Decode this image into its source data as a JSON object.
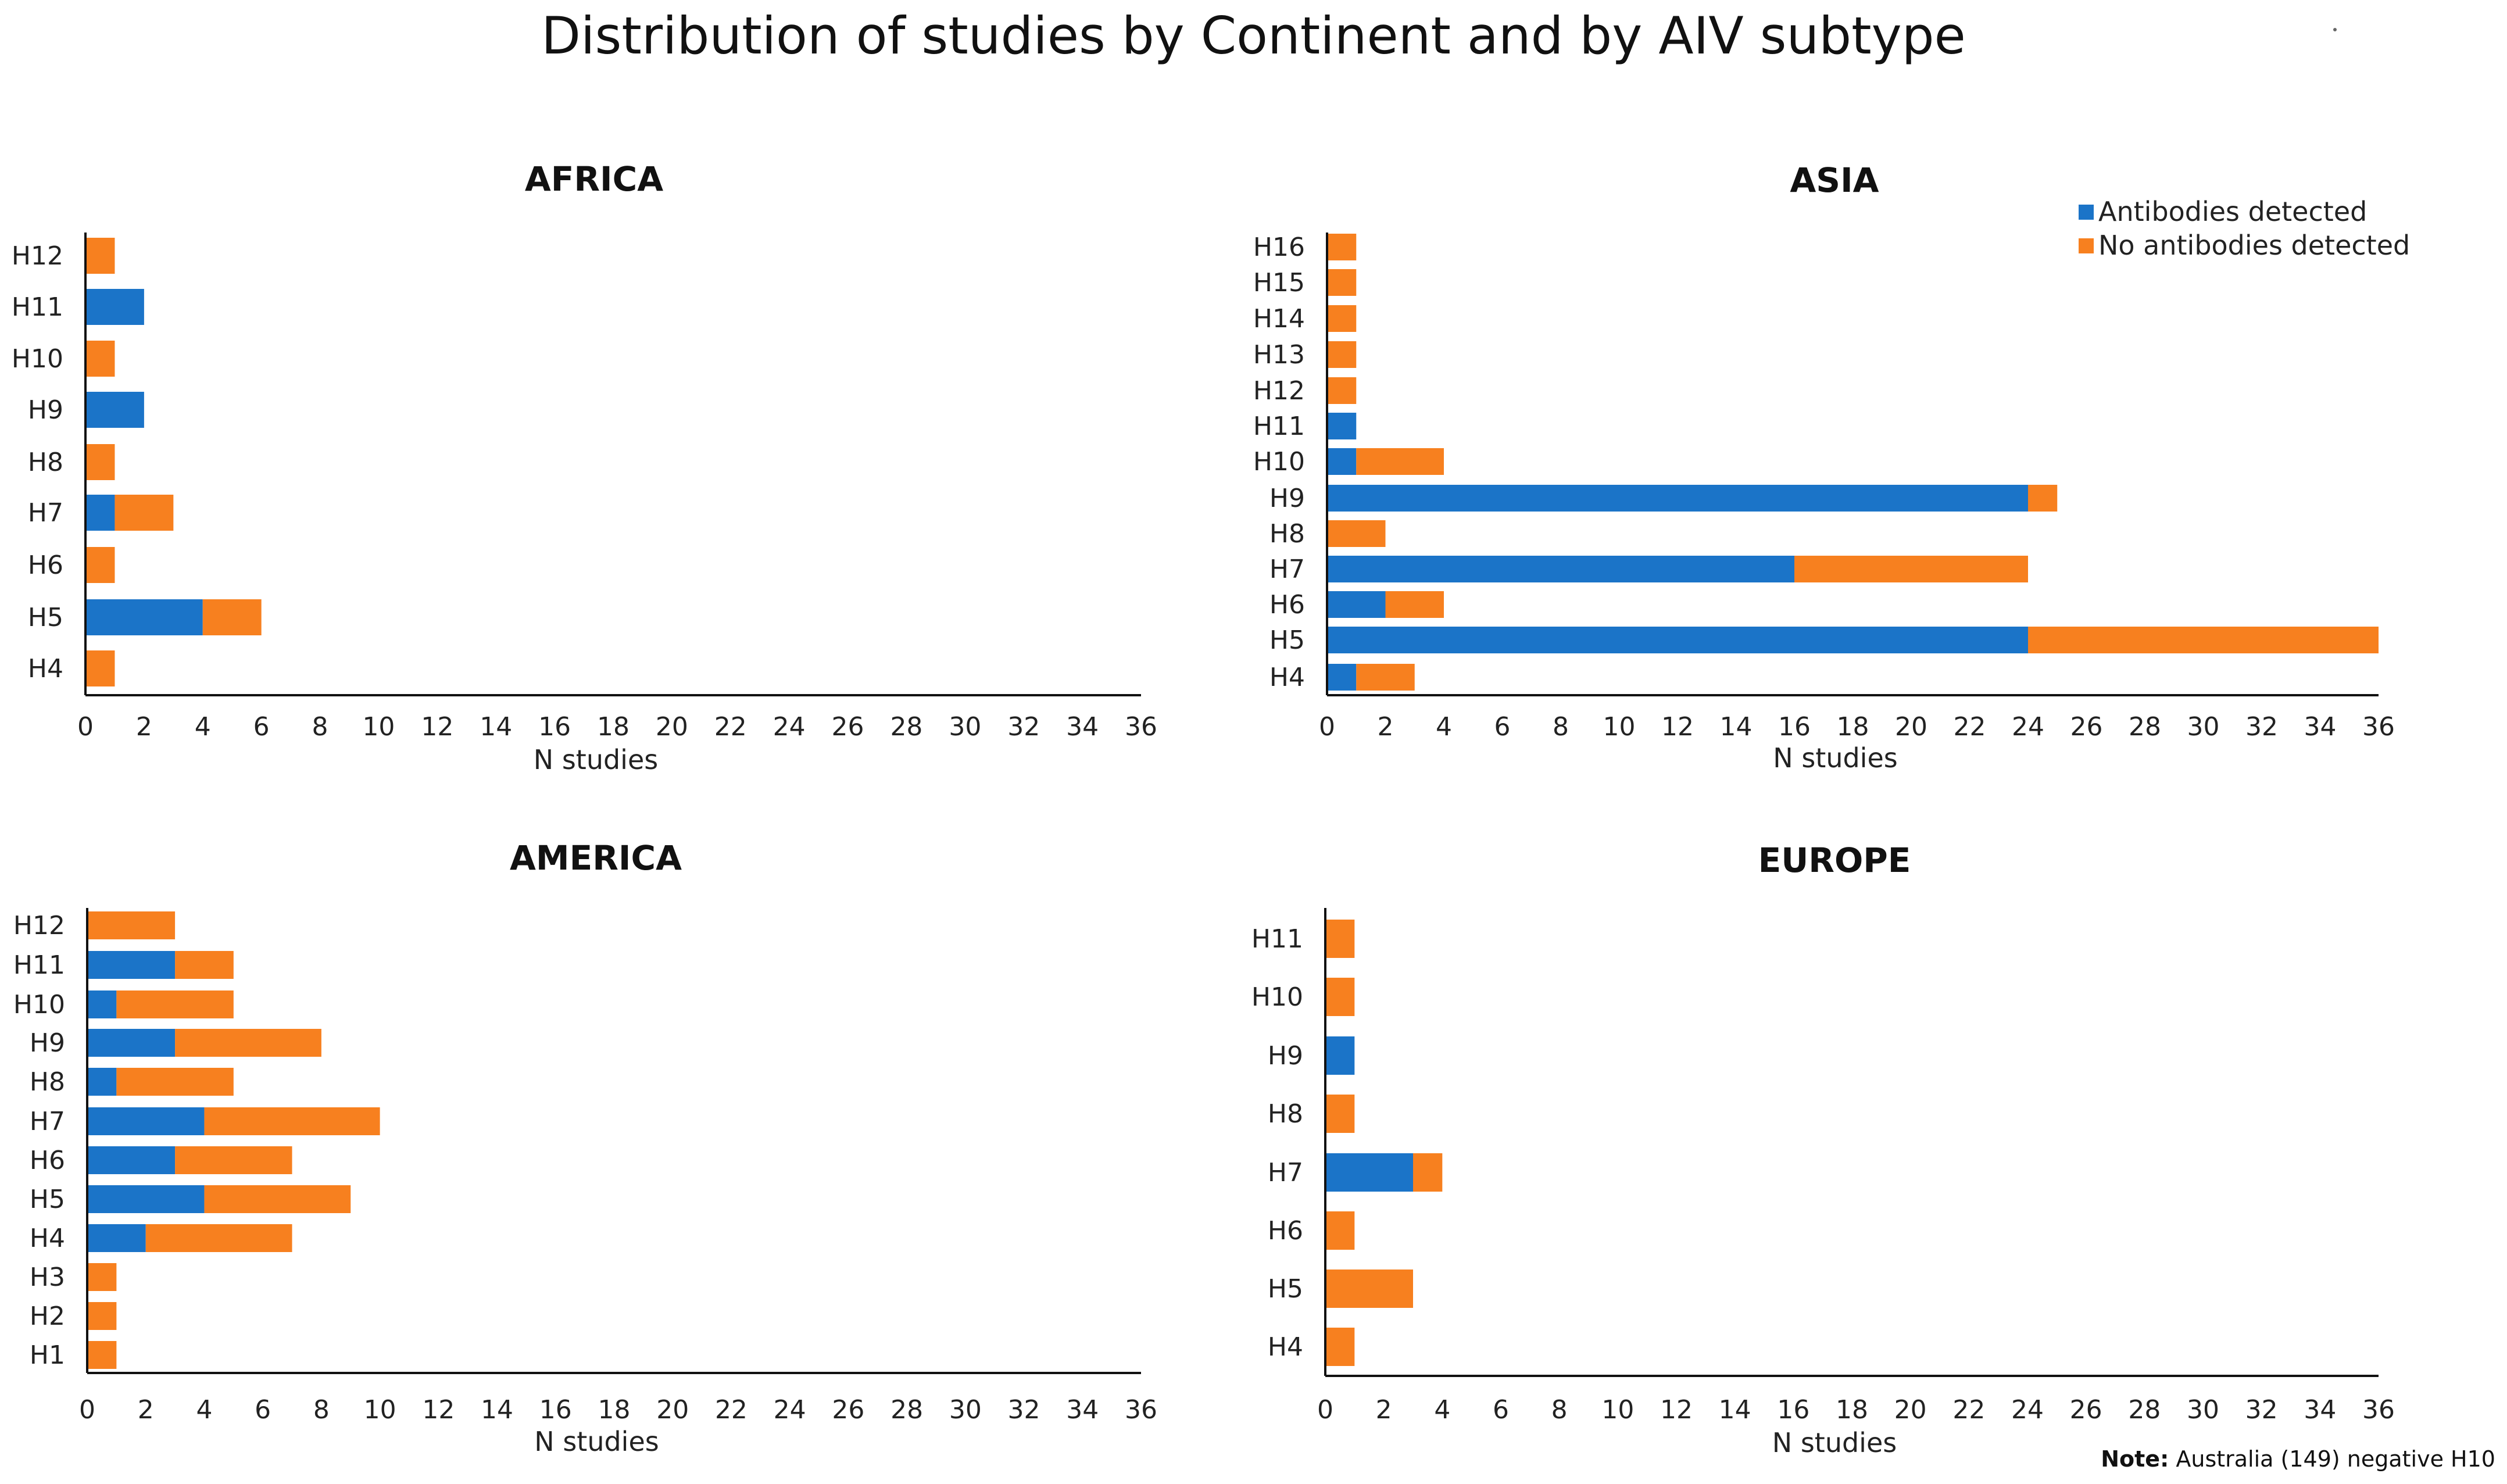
{
  "title": "Distribution of studies by Continent and by AIV subtype",
  "note": {
    "label": "Note:",
    "text": "Australia (149) negative H10"
  },
  "colors": {
    "detected": "#1B74C8",
    "not_detected": "#F7801F",
    "axis": "#111111"
  },
  "legend": {
    "detected": "Antibodies detected",
    "not_detected": "No antibodies detected"
  },
  "chart_data": [
    {
      "type": "bar",
      "orientation": "horizontal",
      "stacked": true,
      "title": "AFRICA",
      "xlabel": "N studies",
      "ylabel": "",
      "xlim": [
        0,
        36
      ],
      "xticks": [
        0,
        2,
        4,
        6,
        8,
        10,
        12,
        14,
        16,
        18,
        20,
        22,
        24,
        26,
        28,
        30,
        32,
        34,
        36
      ],
      "categories": [
        "H12",
        "H11",
        "H10",
        "H9",
        "H8",
        "H7",
        "H6",
        "H5",
        "H4"
      ],
      "series": [
        {
          "name": "Antibodies detected",
          "values": [
            0,
            2,
            0,
            2,
            0,
            1,
            0,
            4,
            0
          ]
        },
        {
          "name": "No antibodies detected",
          "values": [
            1,
            0,
            1,
            0,
            1,
            2,
            1,
            2,
            1
          ]
        }
      ]
    },
    {
      "type": "bar",
      "orientation": "horizontal",
      "stacked": true,
      "title": "ASIA",
      "xlabel": "N studies",
      "ylabel": "",
      "legend": "top-right",
      "xlim": [
        0,
        36
      ],
      "xticks": [
        0,
        2,
        4,
        6,
        8,
        10,
        12,
        14,
        16,
        18,
        20,
        22,
        24,
        26,
        28,
        30,
        32,
        34,
        36
      ],
      "categories": [
        "H16",
        "H15",
        "H14",
        "H13",
        "H12",
        "H11",
        "H10",
        "H9",
        "H8",
        "H7",
        "H6",
        "H5",
        "H4"
      ],
      "series": [
        {
          "name": "Antibodies detected",
          "values": [
            0,
            0,
            0,
            0,
            0,
            1,
            1,
            24,
            0,
            16,
            2,
            24,
            1
          ]
        },
        {
          "name": "No antibodies detected",
          "values": [
            1,
            1,
            1,
            1,
            1,
            0,
            3,
            1,
            2,
            8,
            2,
            12,
            2
          ]
        }
      ]
    },
    {
      "type": "bar",
      "orientation": "horizontal",
      "stacked": true,
      "title": "AMERICA",
      "xlabel": "N studies",
      "ylabel": "",
      "xlim": [
        0,
        36
      ],
      "xticks": [
        0,
        2,
        4,
        6,
        8,
        10,
        12,
        14,
        16,
        18,
        20,
        22,
        24,
        26,
        28,
        30,
        32,
        34,
        36
      ],
      "categories": [
        "H12",
        "H11",
        "H10",
        "H9",
        "H8",
        "H7",
        "H6",
        "H5",
        "H4",
        "H3",
        "H2",
        "H1"
      ],
      "series": [
        {
          "name": "Antibodies detected",
          "values": [
            0,
            3,
            1,
            3,
            1,
            4,
            3,
            4,
            2,
            0,
            0,
            0
          ]
        },
        {
          "name": "No antibodies detected",
          "values": [
            3,
            2,
            4,
            5,
            4,
            6,
            4,
            5,
            5,
            1,
            1,
            1
          ]
        }
      ]
    },
    {
      "type": "bar",
      "orientation": "horizontal",
      "stacked": true,
      "title": "EUROPE",
      "xlabel": "N studies",
      "ylabel": "",
      "xlim": [
        0,
        36
      ],
      "xticks": [
        0,
        2,
        4,
        6,
        8,
        10,
        12,
        14,
        16,
        18,
        20,
        22,
        24,
        26,
        28,
        30,
        32,
        34,
        36
      ],
      "categories": [
        "H11",
        "H10",
        "H9",
        "H8",
        "H7",
        "H6",
        "H5",
        "H4"
      ],
      "series": [
        {
          "name": "Antibodies detected",
          "values": [
            0,
            0,
            1,
            0,
            3,
            0,
            0,
            0
          ]
        },
        {
          "name": "No antibodies detected",
          "values": [
            1,
            1,
            0,
            1,
            1,
            1,
            3,
            1
          ]
        }
      ]
    }
  ]
}
